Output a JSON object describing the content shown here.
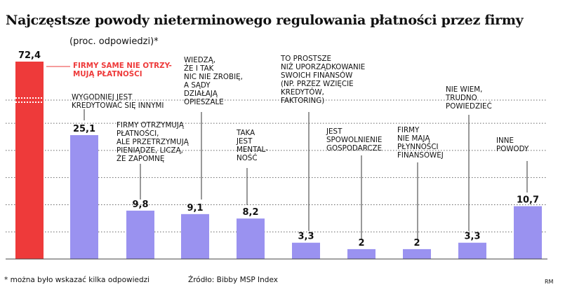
{
  "title": "Najczęstsze powody nieterminowego regulowania płatności przez firmy",
  "subtitle": "(proc. odpowiedzi)*",
  "footnote": "* można było wskazać kilka odpowiedzi",
  "source": "Źródło: Bibby MSP Index",
  "credit": "RM",
  "colors": {
    "highlight": "#ee3a3a",
    "bar": "#9a92f0",
    "grid": "#666666",
    "leader": "#333333"
  },
  "chart_data": {
    "type": "bar",
    "axis_break": true,
    "grid": true,
    "ylim": [
      0,
      28
    ],
    "categories": [
      [
        "FIRMY SAME NIE OTRZY-",
        "MUJĄ PŁATNOŚCI"
      ],
      [
        "WYGODNIEJ JEST",
        "KREDYTOWAĆ SIĘ INNYMI"
      ],
      [
        "FIRMY OTRZYMUJĄ",
        "PŁATNOŚCI,",
        "ALE PRZETRZYMUJĄ",
        "PIENIĄDZE, LICZĄ,",
        "ŻE ZAPOMNĘ"
      ],
      [
        "WIEDZĄ,",
        "ŻE I TAK",
        "NIC NIE ZROBIĘ,",
        "A SĄDY",
        "DZIAŁAJĄ",
        "OPIESZALE"
      ],
      [
        "TAKA",
        "JEST",
        "MENTAL-",
        "NOŚĆ"
      ],
      [
        "TO PROSTSZE",
        "NIŻ UPORZĄDKOWANIE",
        "SWOICH FINANSÓW",
        "(NP. PRZEZ WZIĘCIE",
        "KREDYTÓW,",
        "FAKTORING)"
      ],
      [
        "JEST",
        "SPOWOLNIENIE",
        "GOSPODARCZE"
      ],
      [
        "FIRMY",
        "NIE MAJĄ",
        "PŁYNNOŚCI",
        "FINANSOWEJ"
      ],
      [
        "NIE WIEM,",
        "TRUDNO",
        "POWIEDZIEĆ"
      ],
      [
        "INNE",
        "POWODY"
      ]
    ],
    "values": [
      72.4,
      25.1,
      9.8,
      9.1,
      8.2,
      3.3,
      2,
      2,
      3.3,
      10.7
    ],
    "value_labels": [
      "72,4",
      "25,1",
      "9,8",
      "9,1",
      "8,2",
      "3,3",
      "2",
      "2",
      "3,3",
      "10,7"
    ],
    "highlight_index": 0
  }
}
